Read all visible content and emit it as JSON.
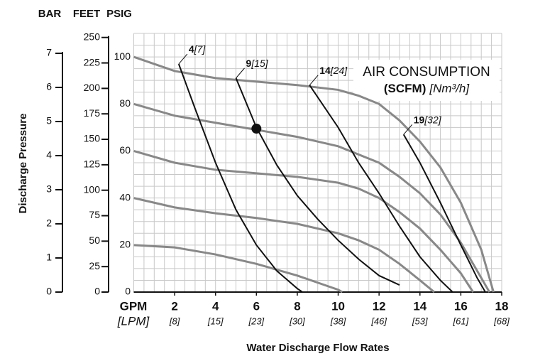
{
  "chart_data": {
    "type": "line",
    "axis_headers": [
      "BAR",
      "FEET",
      "PSIG"
    ],
    "ylabel": "Discharge Pressure",
    "xlabel": "Water Discharge Flow Rates",
    "x_unit": "GPM",
    "x_unit_metric": "[LPM]",
    "legend_title": "AIR CONSUMPTION",
    "legend_unit": "(SCFM)",
    "legend_unit_metric": "[Nm³/h]",
    "xlim": [
      0,
      18
    ],
    "xticks": [
      2,
      4,
      6,
      8,
      10,
      12,
      14,
      16,
      18
    ],
    "xtick_metric_labels": [
      "[8]",
      "[15]",
      "[23]",
      "[30]",
      "[38]",
      "[46]",
      "[53]",
      "[61]",
      "[68]"
    ],
    "ylim": [
      0,
      110
    ],
    "yticks": [
      0,
      20,
      40,
      60,
      80,
      100
    ],
    "bar_ylim": [
      0,
      7.584
    ],
    "bar_yticks": [
      0,
      1,
      2,
      3,
      4,
      5,
      6,
      7
    ],
    "feet_ylim": [
      0,
      254
    ],
    "feet_yticks": [
      0,
      25,
      50,
      75,
      100,
      125,
      150,
      175,
      200,
      225,
      250
    ],
    "grid": true,
    "grid_step_x": 0.5,
    "grid_step_y": 5,
    "curve_color": "#888888",
    "consumption_color": "#111111",
    "curves": [
      {
        "x": [
          0,
          2,
          4,
          6,
          8,
          10,
          11,
          12,
          13,
          14,
          15,
          16,
          17,
          17.6
        ],
        "values": [
          100,
          94,
          91,
          89.5,
          88,
          86,
          83.5,
          80,
          73,
          64,
          53,
          38,
          18,
          0
        ]
      },
      {
        "x": [
          0,
          2,
          4,
          6,
          8,
          10,
          12,
          13,
          14,
          15,
          16,
          17,
          17.4
        ],
        "values": [
          80,
          75,
          72,
          69,
          66,
          62,
          55,
          49,
          42,
          33,
          21,
          6,
          0
        ]
      },
      {
        "x": [
          0,
          2,
          4,
          6,
          8,
          10,
          11,
          12,
          13,
          14,
          15,
          16,
          16.6
        ],
        "values": [
          60,
          55,
          52,
          50.5,
          49,
          46.5,
          44,
          40,
          34,
          27,
          18,
          8,
          0
        ]
      },
      {
        "x": [
          0,
          2,
          4,
          6,
          8,
          10,
          11,
          12,
          13,
          14,
          14.7
        ],
        "values": [
          40,
          36,
          33.5,
          31.5,
          29,
          25,
          22,
          18,
          12,
          5,
          0
        ]
      },
      {
        "x": [
          0,
          2,
          4,
          6,
          7,
          8,
          9,
          10,
          10.2
        ],
        "values": [
          20,
          19,
          16,
          12,
          9.5,
          7,
          4,
          1,
          0
        ]
      }
    ],
    "series": [
      {
        "name": "4",
        "metric": "[7]",
        "x": [
          2.2,
          3,
          4,
          5,
          6,
          7,
          8,
          8.25
        ],
        "values": [
          97,
          78,
          55,
          35,
          20,
          9,
          1.5,
          0
        ]
      },
      {
        "name": "9",
        "metric": "[15]",
        "x": [
          5,
          6,
          7,
          8,
          9,
          10,
          11,
          12,
          13
        ],
        "values": [
          91,
          70,
          54,
          41,
          31,
          22,
          14,
          7,
          3
        ]
      },
      {
        "name": "14",
        "metric": "[24]",
        "x": [
          8.6,
          10,
          11,
          12,
          13,
          14,
          15,
          15.6
        ],
        "values": [
          88,
          70,
          55,
          42,
          28,
          15,
          5,
          0
        ]
      },
      {
        "name": "19",
        "metric": "[32]",
        "x": [
          13.2,
          14,
          15,
          16,
          16.8,
          17.2
        ],
        "values": [
          67,
          55,
          38,
          20,
          6,
          0
        ]
      }
    ],
    "marker": {
      "x": 6,
      "value": 69.5
    }
  }
}
